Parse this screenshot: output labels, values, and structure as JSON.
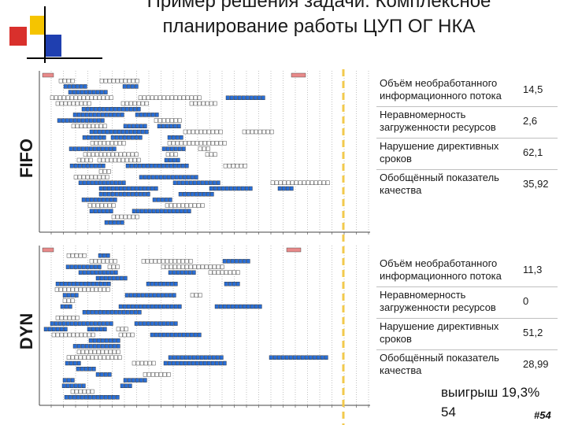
{
  "title_lines": [
    "Пример решения задачи. Комплексное",
    "планирование работы ЦУП ОГ НКА"
  ],
  "panels": [
    {
      "label": "FIFO",
      "metrics": [
        {
          "label": "Объём необработанного информационного потока",
          "value": "14,5"
        },
        {
          "label": "Неравномерность загруженности ресурсов",
          "value": "2,6"
        },
        {
          "label": "Нарушение директивных сроков",
          "value": "62,1"
        },
        {
          "label": "Обобщённый показатель качества",
          "value": "35,92"
        }
      ]
    },
    {
      "label": "DYN",
      "metrics": [
        {
          "label": "Объём необработанного информационного потока",
          "value": "11,3"
        },
        {
          "label": "Неравномерность загруженности ресурсов",
          "value": "0"
        },
        {
          "label": "Нарушение директивных сроков",
          "value": "51,2"
        },
        {
          "label": "Обобщённый показатель качества",
          "value": "28,99"
        }
      ]
    }
  ],
  "gain": "выигрыш 19,3%",
  "slide_number": "54",
  "badge": "#54",
  "colors": {
    "accent_yellow": "#f5c400",
    "accent_red": "#d9302c",
    "accent_blue": "#1f3fb0",
    "bar_blue": "#2a6fd6",
    "bar_white": "#ffffff",
    "bar_pink": "#e88a8a",
    "marker_yellow": "#f2c94c"
  }
}
